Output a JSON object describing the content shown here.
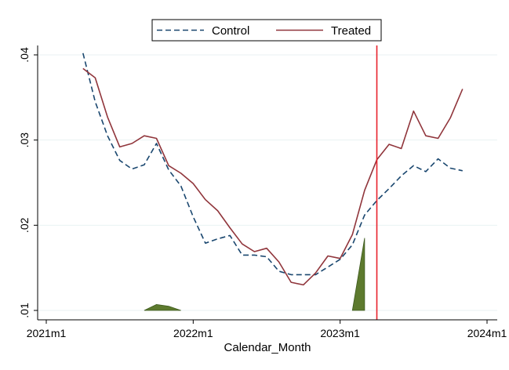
{
  "chart_data": {
    "type": "line",
    "title": "",
    "xlabel": "Calendar_Month",
    "ylabel": "",
    "x_ticks": [
      "2021m1",
      "2022m1",
      "2023m1",
      "2024m1"
    ],
    "y_ticks": [
      ".01",
      ".02",
      ".03",
      ".04"
    ],
    "xlim": [
      "2021m1",
      "2024m1"
    ],
    "ylim": [
      0.0099,
      0.0411
    ],
    "grid": "horizontal",
    "legend_position": "top",
    "x": [
      "2021m4",
      "2021m5",
      "2021m6",
      "2021m7",
      "2021m8",
      "2021m9",
      "2021m10",
      "2021m11",
      "2021m12",
      "2022m1",
      "2022m2",
      "2022m3",
      "2022m4",
      "2022m5",
      "2022m6",
      "2022m7",
      "2022m8",
      "2022m9",
      "2022m10",
      "2022m11",
      "2022m12",
      "2023m1",
      "2023m2",
      "2023m3",
      "2023m4",
      "2023m5",
      "2023m6",
      "2023m7",
      "2023m8",
      "2023m9",
      "2023m10",
      "2023m11"
    ],
    "series": [
      {
        "name": "Control",
        "color": "#1a476f",
        "style": "dashed",
        "values": [
          0.0402,
          0.0345,
          0.0305,
          0.0276,
          0.0266,
          0.0271,
          0.0296,
          0.0265,
          0.0246,
          0.021,
          0.0179,
          0.0184,
          0.0188,
          0.0165,
          0.0165,
          0.0163,
          0.0146,
          0.0142,
          0.0142,
          0.0142,
          0.0151,
          0.016,
          0.0177,
          0.0212,
          0.0229,
          0.0243,
          0.0258,
          0.027,
          0.0263,
          0.0278,
          0.0267,
          0.0264
        ]
      },
      {
        "name": "Treated",
        "color": "#90353b",
        "style": "solid",
        "values": [
          0.0384,
          0.0373,
          0.0327,
          0.0292,
          0.0296,
          0.0305,
          0.0302,
          0.027,
          0.0261,
          0.0249,
          0.023,
          0.0217,
          0.0197,
          0.0178,
          0.0169,
          0.0173,
          0.0157,
          0.0133,
          0.013,
          0.0144,
          0.0164,
          0.0161,
          0.0189,
          0.0241,
          0.0277,
          0.0295,
          0.029,
          0.0334,
          0.0305,
          0.0302,
          0.0326,
          0.036
        ]
      }
    ],
    "reference_line": {
      "x": "2023m4",
      "color": "#e8212b"
    },
    "shaded_areas": [
      {
        "color": "#5d7a2e",
        "x": [
          "2021m9",
          "2021m10",
          "2021m11",
          "2021m12"
        ],
        "values": [
          0.01,
          0.0107,
          0.0105,
          0.01
        ]
      },
      {
        "color": "#5d7a2e",
        "x": [
          "2023m2",
          "2023m3"
        ],
        "values": [
          0.01,
          0.0185
        ]
      }
    ],
    "background": "#ffffff",
    "grid_color": "#eaf2f3"
  }
}
